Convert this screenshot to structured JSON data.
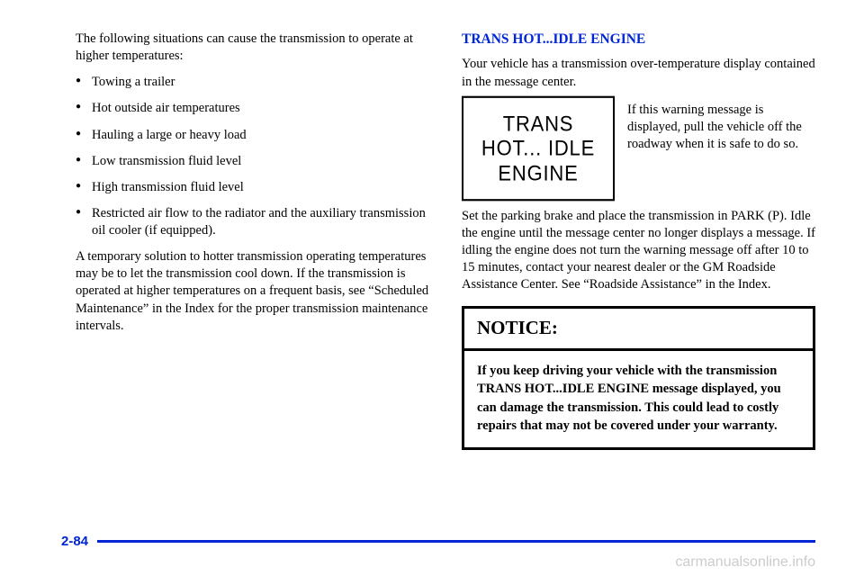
{
  "left": {
    "intro": "The following situations can cause the transmission to operate at higher temperatures:",
    "bullets": [
      "Towing a trailer",
      "Hot outside air temperatures",
      "Hauling a large or heavy load",
      "Low transmission fluid level",
      "High transmission fluid level",
      "Restricted air flow to the radiator and the auxiliary transmission oil cooler (if equipped)."
    ],
    "closing": "A temporary solution to hotter transmission operating temperatures may be to let the transmission cool down. If the transmission is operated at higher temperatures on a frequent basis, see “Scheduled Maintenance” in the Index for the proper transmission maintenance intervals."
  },
  "right": {
    "heading": "TRANS HOT...IDLE ENGINE",
    "intro": "Your vehicle has a transmission over‑temperature display contained in the message center.",
    "warning_display_line1": "TRANS",
    "warning_display_line2": "HOT... IDLE",
    "warning_display_line3": "ENGINE",
    "warning_side": "If this warning message is displayed, pull the vehicle off the roadway when it is safe to do so.",
    "body": "Set the parking brake and place the transmission in PARK (P). Idle the engine until the message center no longer displays a message. If idling the engine does not turn the warning message off after 10 to 15 minutes, contact your nearest dealer or the GM Roadside Assistance Center. See “Roadside Assistance” in the Index.",
    "notice_label": "NOTICE:",
    "notice_body": "If you keep driving your vehicle with the transmission TRANS HOT...IDLE ENGINE message displayed, you can damage the transmission. This could lead to costly repairs that may not be covered under your warranty."
  },
  "page_number": "2-84",
  "watermark": "carmanualsonline.info",
  "colors": {
    "accent": "#0026d3",
    "text": "#000000",
    "watermark": "#cccccc",
    "background": "#ffffff"
  }
}
